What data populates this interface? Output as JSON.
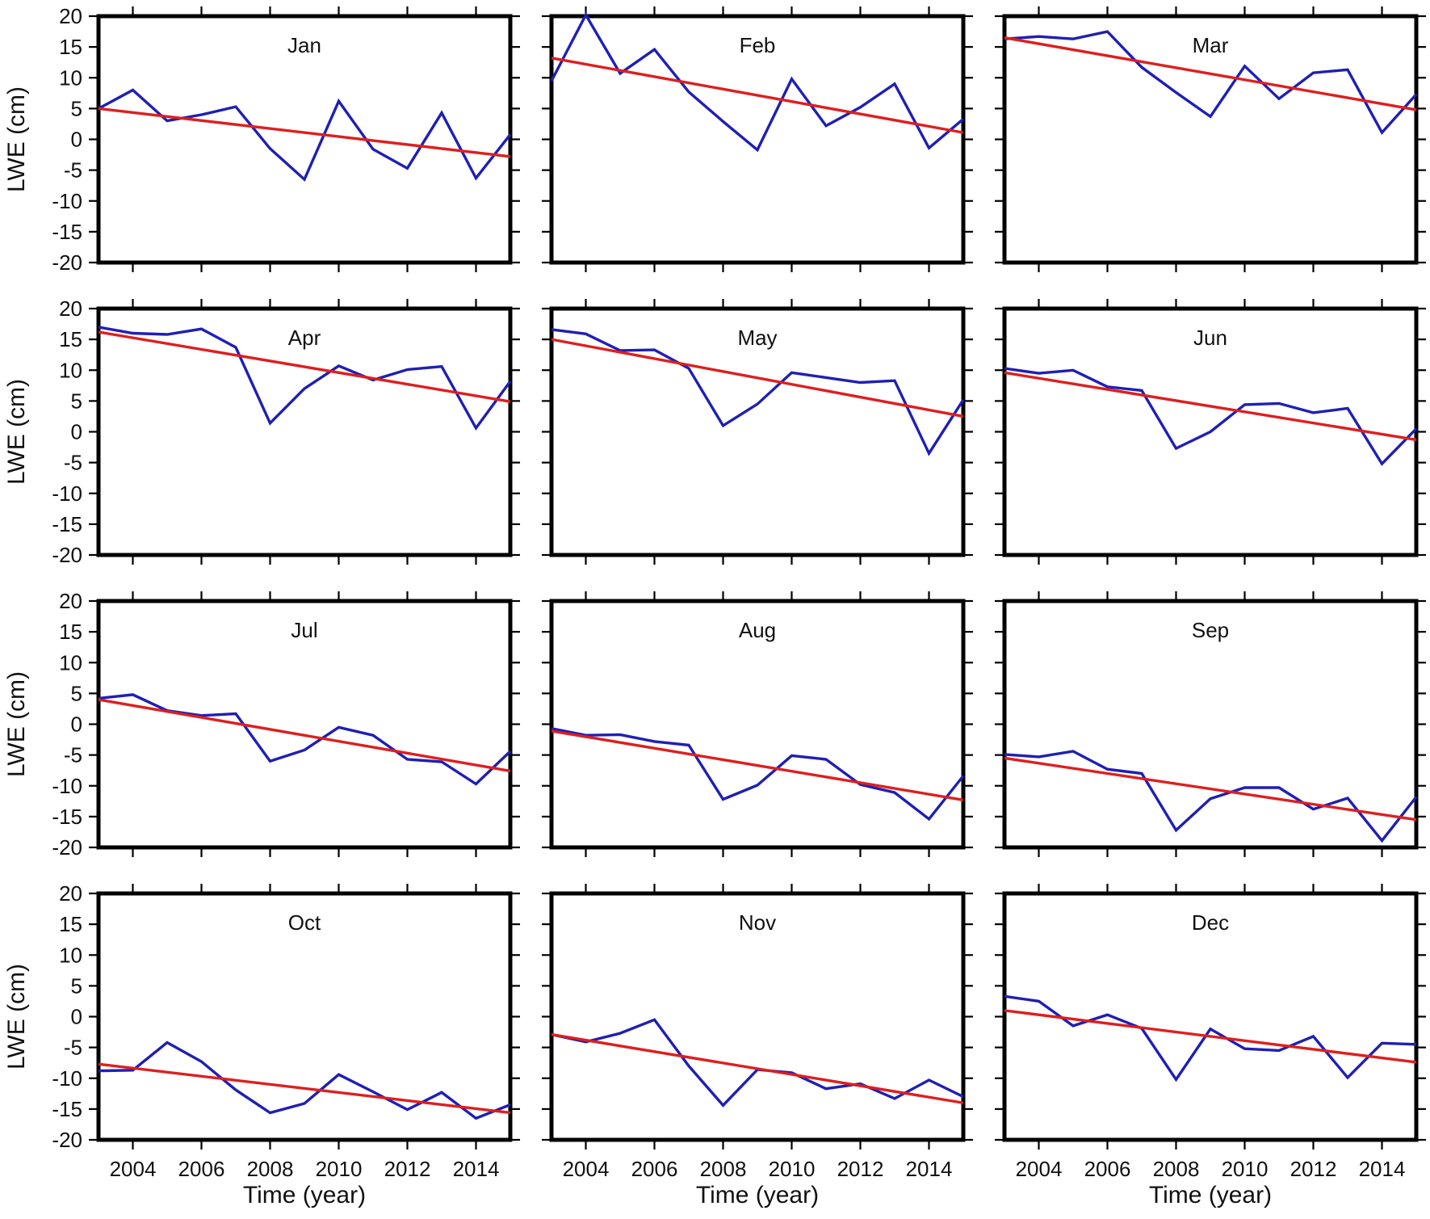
{
  "chart_data": {
    "type": "line",
    "layout": "4x3 small multiples",
    "xlabel": "Time (year)",
    "ylabel": "LWE (cm)",
    "ylim": [
      -20,
      20
    ],
    "xlim": [
      2003,
      2015
    ],
    "y_ticks": [
      20,
      15,
      10,
      5,
      0,
      -5,
      -10,
      -15,
      -20
    ],
    "x_tick_labels": [
      2004,
      2006,
      2008,
      2010,
      2012,
      2014
    ],
    "grid": false,
    "series_colors": {
      "observed": "#1f1fb4",
      "trend": "#dd1f1f"
    },
    "x": [
      2003,
      2004,
      2005,
      2006,
      2007,
      2008,
      2009,
      2010,
      2011,
      2012,
      2013,
      2014,
      2015
    ],
    "panels": [
      {
        "title": "Jan",
        "values": [
          5,
          8,
          3,
          4,
          5.3,
          -1.5,
          -6.5,
          6.2,
          -1.6,
          -4.7,
          4.3,
          -6.3,
          0.8
        ],
        "trend": [
          5,
          -2.8
        ]
      },
      {
        "title": "Feb",
        "values": [
          9.5,
          20.2,
          10.7,
          14.6,
          7.7,
          2.9,
          -1.7,
          9.8,
          2.2,
          5.2,
          9,
          -1.4,
          3.3
        ],
        "trend": [
          13.2,
          1.1
        ]
      },
      {
        "title": "Mar",
        "values": [
          16.3,
          16.7,
          16.3,
          17.5,
          11.7,
          7.6,
          3.7,
          11.9,
          6.6,
          10.8,
          11.3,
          1.1,
          7.3
        ],
        "trend": [
          16.5,
          4.8
        ]
      },
      {
        "title": "Apr",
        "values": [
          17,
          16,
          15.8,
          16.7,
          13.7,
          1.4,
          7,
          10.7,
          8.4,
          10.1,
          10.6,
          0.6,
          8.2
        ],
        "trend": [
          16.2,
          4.9
        ]
      },
      {
        "title": "May",
        "values": [
          16.6,
          15.9,
          13.2,
          13.3,
          10.3,
          1,
          4.5,
          9.6,
          8.8,
          8,
          8.3,
          -3.5,
          5.2
        ],
        "trend": [
          15,
          2.5
        ]
      },
      {
        "title": "Jun",
        "values": [
          10.3,
          9.5,
          10,
          7.3,
          6.7,
          -2.7,
          0,
          4.4,
          4.6,
          3.1,
          3.8,
          -5.2,
          0.5
        ],
        "trend": [
          9.6,
          -1.3
        ]
      },
      {
        "title": "Jul",
        "values": [
          4.2,
          4.8,
          2.2,
          1.4,
          1.7,
          -6,
          -4.2,
          -0.5,
          -1.8,
          -5.7,
          -6.1,
          -9.7,
          -4.4
        ],
        "trend": [
          4,
          -7.6
        ]
      },
      {
        "title": "Aug",
        "values": [
          -0.7,
          -1.8,
          -1.7,
          -2.8,
          -3.4,
          -12.2,
          -9.9,
          -5.1,
          -5.7,
          -9.8,
          -11.1,
          -15.4,
          -8.4
        ],
        "trend": [
          -1.1,
          -12.3
        ]
      },
      {
        "title": "Sep",
        "values": [
          -4.9,
          -5.3,
          -4.4,
          -7.3,
          -8,
          -17.2,
          -12.1,
          -10.3,
          -10.3,
          -13.8,
          -12,
          -18.9,
          -11.8
        ],
        "trend": [
          -5.5,
          -15.5
        ]
      },
      {
        "title": "Oct",
        "values": [
          -8.8,
          -8.7,
          -4.2,
          -7.3,
          -11.9,
          -15.6,
          -14.1,
          -9.4,
          -12.2,
          -15.1,
          -12.3,
          -16.5,
          -14.3
        ],
        "trend": [
          -7.7,
          -15.6
        ]
      },
      {
        "title": "Nov",
        "values": [
          -2.9,
          -4.1,
          -2.7,
          -0.5,
          -8,
          -14.4,
          -8.6,
          -9.1,
          -11.7,
          -10.9,
          -13.3,
          -10.3,
          -13
        ],
        "trend": [
          -2.9,
          -14
        ]
      },
      {
        "title": "Dec",
        "values": [
          3.3,
          2.5,
          -1.5,
          0.3,
          -1.9,
          -10.2,
          -2,
          -5.2,
          -5.5,
          -3.2,
          -9.9,
          -4.3,
          -4.5
        ],
        "trend": [
          1,
          -7.4
        ]
      }
    ]
  }
}
